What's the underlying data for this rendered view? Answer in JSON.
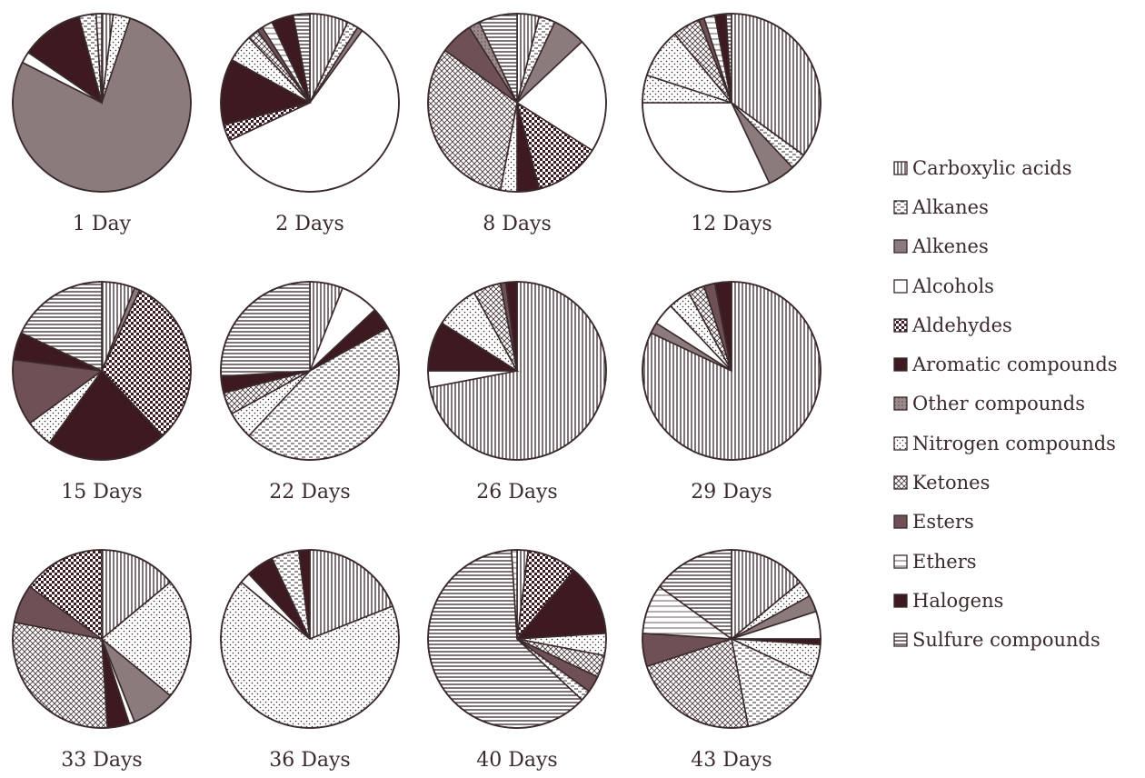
{
  "chart_data": {
    "type": "pie",
    "legend": {
      "placement": "right",
      "entries": [
        {
          "key": "carboxylic",
          "label": "Carboxylic acids",
          "pattern": "vlines"
        },
        {
          "key": "alkanes",
          "label": "Alkanes",
          "pattern": "dashes"
        },
        {
          "key": "alkenes",
          "label": "Alkenes",
          "pattern": "gray"
        },
        {
          "key": "alcohols",
          "label": "Alcohols",
          "pattern": "white"
        },
        {
          "key": "aldehydes",
          "label": "Aldehydes",
          "pattern": "checker"
        },
        {
          "key": "aromatic",
          "label": "Aromatic compounds",
          "pattern": "dark"
        },
        {
          "key": "other",
          "label": "Other compounds",
          "pattern": "graydots"
        },
        {
          "key": "nitrogen",
          "label": "Nitrogen compounds",
          "pattern": "dots"
        },
        {
          "key": "ketones",
          "label": "Ketones",
          "pattern": "crosshatch"
        },
        {
          "key": "esters",
          "label": "Esters",
          "pattern": "mauve"
        },
        {
          "key": "ethers",
          "label": "Ethers",
          "pattern": "lightlines"
        },
        {
          "key": "halogens",
          "label": "Halogens",
          "pattern": "dark2"
        },
        {
          "key": "sulfur",
          "label": "Sulfure compounds",
          "pattern": "hlines"
        }
      ]
    },
    "pies": [
      {
        "label": "1 Day",
        "slices": [
          {
            "key": "carboxylic",
            "value": 2
          },
          {
            "key": "nitrogen",
            "value": 3
          },
          {
            "key": "alkenes",
            "value": 75
          },
          {
            "key": "alcohols",
            "value": 2
          },
          {
            "key": "aromatic",
            "value": 11
          },
          {
            "key": "alkanes",
            "value": 3
          },
          {
            "key": "ethers",
            "value": 1
          },
          {
            "key": "dummy",
            "value": 0
          }
        ]
      },
      {
        "label": "2 Days",
        "slices": [
          {
            "key": "carboxylic",
            "value": 7
          },
          {
            "key": "alkanes",
            "value": 2
          },
          {
            "key": "alkenes",
            "value": 1
          },
          {
            "key": "alcohols",
            "value": 58
          },
          {
            "key": "aldehydes",
            "value": 3
          },
          {
            "key": "aromatic",
            "value": 12
          },
          {
            "key": "nitrogen",
            "value": 5
          },
          {
            "key": "ketones",
            "value": 2
          },
          {
            "key": "esters",
            "value": 1
          },
          {
            "key": "ethers",
            "value": 2
          },
          {
            "key": "halogens",
            "value": 4
          },
          {
            "key": "sulfur",
            "value": 3
          }
        ]
      },
      {
        "label": "8 Days",
        "slices": [
          {
            "key": "carboxylic",
            "value": 4
          },
          {
            "key": "alkanes",
            "value": 3
          },
          {
            "key": "alkenes",
            "value": 6
          },
          {
            "key": "alcohols",
            "value": 21
          },
          {
            "key": "aldehydes",
            "value": 12
          },
          {
            "key": "aromatic",
            "value": 4
          },
          {
            "key": "nitrogen",
            "value": 3
          },
          {
            "key": "ketones",
            "value": 32
          },
          {
            "key": "esters",
            "value": 6
          },
          {
            "key": "other",
            "value": 2
          },
          {
            "key": "sulfur",
            "value": 7
          }
        ]
      },
      {
        "label": "12 Days",
        "slices": [
          {
            "key": "carboxylic",
            "value": 35
          },
          {
            "key": "alkanes",
            "value": 3
          },
          {
            "key": "alkenes",
            "value": 5
          },
          {
            "key": "alcohols",
            "value": 32
          },
          {
            "key": "nitrogen",
            "value": 5
          },
          {
            "key": "dots",
            "value": 9
          },
          {
            "key": "ketones",
            "value": 5
          },
          {
            "key": "esters",
            "value": 1
          },
          {
            "key": "ethers",
            "value": 2
          },
          {
            "key": "halogens",
            "value": 2
          },
          {
            "key": "sulfur",
            "value": 1
          }
        ]
      },
      {
        "label": "15 Days",
        "slices": [
          {
            "key": "carboxylic",
            "value": 6
          },
          {
            "key": "alkenes",
            "value": 1
          },
          {
            "key": "aldehydes",
            "value": 31
          },
          {
            "key": "aromatic",
            "value": 22
          },
          {
            "key": "nitrogen",
            "value": 5
          },
          {
            "key": "esters",
            "value": 12
          },
          {
            "key": "halogens",
            "value": 5
          },
          {
            "key": "sulfur",
            "value": 18
          }
        ]
      },
      {
        "label": "22 Days",
        "slices": [
          {
            "key": "carboxylic",
            "value": 6
          },
          {
            "key": "alcohols",
            "value": 7
          },
          {
            "key": "aromatic",
            "value": 4
          },
          {
            "key": "alkanes",
            "value": 45
          },
          {
            "key": "nitrogen",
            "value": 5
          },
          {
            "key": "ketones",
            "value": 4
          },
          {
            "key": "halogens",
            "value": 3
          },
          {
            "key": "sulfur",
            "value": 26
          }
        ]
      },
      {
        "label": "26 Days",
        "slices": [
          {
            "key": "carboxylic",
            "value": 72
          },
          {
            "key": "alcohols",
            "value": 3
          },
          {
            "key": "aromatic",
            "value": 9
          },
          {
            "key": "nitrogen",
            "value": 8
          },
          {
            "key": "ketones",
            "value": 5
          },
          {
            "key": "esters",
            "value": 1
          },
          {
            "key": "halogens",
            "value": 2
          }
        ]
      },
      {
        "label": "29 Days",
        "slices": [
          {
            "key": "carboxylic",
            "value": 82
          },
          {
            "key": "alkenes",
            "value": 2
          },
          {
            "key": "alcohols",
            "value": 4
          },
          {
            "key": "nitrogen",
            "value": 4
          },
          {
            "key": "ketones",
            "value": 3
          },
          {
            "key": "esters",
            "value": 2
          },
          {
            "key": "halogens",
            "value": 3
          }
        ]
      },
      {
        "label": "33 Days",
        "slices": [
          {
            "key": "carboxylic",
            "value": 14
          },
          {
            "key": "nitrogen",
            "value": 22
          },
          {
            "key": "alkenes",
            "value": 8
          },
          {
            "key": "alcohols",
            "value": 1
          },
          {
            "key": "aromatic",
            "value": 4
          },
          {
            "key": "ketones",
            "value": 29
          },
          {
            "key": "esters",
            "value": 7
          },
          {
            "key": "aldehydes",
            "value": 15
          }
        ]
      },
      {
        "label": "36 Days",
        "slices": [
          {
            "key": "carboxylic",
            "value": 19
          },
          {
            "key": "nitrogen",
            "value": 67
          },
          {
            "key": "alcohols",
            "value": 2
          },
          {
            "key": "aromatic",
            "value": 5
          },
          {
            "key": "alkanes",
            "value": 5
          },
          {
            "key": "halogens",
            "value": 2
          }
        ]
      },
      {
        "label": "40 Days",
        "slices": [
          {
            "key": "carboxylic",
            "value": 2
          },
          {
            "key": "aldehydes",
            "value": 9
          },
          {
            "key": "aromatic",
            "value": 13
          },
          {
            "key": "nitrogen",
            "value": 4
          },
          {
            "key": "ketones",
            "value": 4
          },
          {
            "key": "esters",
            "value": 3
          },
          {
            "key": "alkanes",
            "value": 2
          },
          {
            "key": "sulfur",
            "value": 62
          },
          {
            "key": "ethers",
            "value": 1
          }
        ]
      },
      {
        "label": "43 Days",
        "slices": [
          {
            "key": "carboxylic",
            "value": 14
          },
          {
            "key": "nitrogen",
            "value": 3
          },
          {
            "key": "alkenes",
            "value": 3
          },
          {
            "key": "alcohols",
            "value": 5
          },
          {
            "key": "aromatic",
            "value": 1
          },
          {
            "key": "dots",
            "value": 6
          },
          {
            "key": "alkanes",
            "value": 15
          },
          {
            "key": "ketones",
            "value": 23
          },
          {
            "key": "esters",
            "value": 6
          },
          {
            "key": "ethers",
            "value": 9
          },
          {
            "key": "sulfur",
            "value": 15
          }
        ]
      }
    ]
  },
  "colors": {
    "ink": "#3a2a2c",
    "dark": "#3d1a20",
    "gray": "#8b7b7d",
    "mauve": "#6e5055"
  }
}
